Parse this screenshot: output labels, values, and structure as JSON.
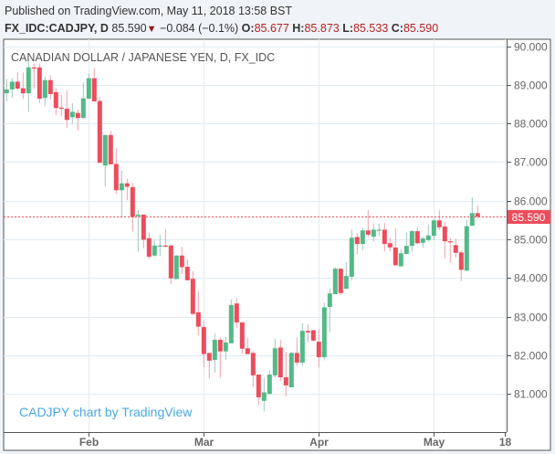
{
  "header": {
    "published": "Published on TradingView.com, May 11, 2018 13:58 BST",
    "symbol": "FX_IDC:CADJPY, D",
    "last": "85.590",
    "direction_icon": "triangle-down-icon",
    "change": "−0.084 (−0.1%)",
    "open_label": "O:",
    "open": "85.677",
    "high_label": "H:",
    "high": "85.873",
    "low_label": "L:",
    "low": "85.533",
    "close_label": "C:",
    "close": "85.590"
  },
  "colors": {
    "up": "#53b987",
    "down": "#eb4d5c",
    "up_wick": "#9fc7bd",
    "down_wick": "#eda2aa",
    "last_price": "#eb4d5c",
    "watermark": "#4aa8e0"
  },
  "chart_data": {
    "type": "candlestick",
    "title": "CANADIAN DOLLAR / JAPANESE YEN, D, FX_IDC",
    "watermark": "CADJPY chart by TradingView",
    "ylim": [
      80.2,
      90.15
    ],
    "y_ticks": [
      "90.000",
      "89.000",
      "88.000",
      "87.000",
      "86.000",
      "85.000",
      "84.000",
      "83.000",
      "82.000",
      "81.000"
    ],
    "x_ticks": [
      {
        "label": "Feb",
        "bar": 15
      },
      {
        "label": "Mar",
        "bar": 36
      },
      {
        "label": "Apr",
        "bar": 57
      },
      {
        "label": "May",
        "bar": 78
      },
      {
        "label": "18",
        "bar": 91
      }
    ],
    "grid": true,
    "last_price": 85.59,
    "last_price_label": "85.590",
    "ohlc": [
      [
        88.78,
        89.15,
        88.57,
        88.88
      ],
      [
        88.88,
        89.17,
        88.66,
        89.08
      ],
      [
        89.08,
        89.33,
        88.86,
        88.9
      ],
      [
        88.91,
        89.32,
        88.64,
        88.78
      ],
      [
        88.78,
        89.65,
        88.3,
        89.45
      ],
      [
        89.45,
        89.55,
        88.9,
        89.42
      ],
      [
        89.45,
        89.55,
        88.52,
        88.64
      ],
      [
        88.66,
        89.21,
        88.44,
        89.12
      ],
      [
        89.12,
        89.24,
        88.62,
        88.76
      ],
      [
        88.81,
        88.91,
        88.21,
        88.4
      ],
      [
        88.41,
        88.74,
        88.19,
        88.38
      ],
      [
        88.38,
        88.86,
        87.89,
        88.09
      ],
      [
        88.16,
        88.52,
        87.99,
        88.3
      ],
      [
        88.27,
        88.36,
        87.81,
        88.14
      ],
      [
        88.14,
        89.06,
        88.13,
        88.65
      ],
      [
        88.64,
        89.29,
        88.64,
        89.17
      ],
      [
        89.17,
        89.43,
        88.57,
        88.57
      ],
      [
        88.58,
        88.68,
        86.98,
        86.98
      ],
      [
        86.91,
        87.7,
        86.37,
        87.7
      ],
      [
        87.7,
        87.81,
        86.94,
        86.94
      ],
      [
        86.95,
        87.37,
        86.17,
        86.27
      ],
      [
        86.27,
        86.78,
        85.56,
        86.45
      ],
      [
        86.45,
        86.57,
        86.01,
        86.36
      ],
      [
        86.35,
        86.47,
        85.2,
        85.58
      ],
      [
        85.6,
        85.76,
        84.68,
        85.64
      ],
      [
        85.64,
        85.64,
        84.77,
        84.99
      ],
      [
        85.03,
        85.18,
        84.49,
        84.55
      ],
      [
        84.58,
        84.99,
        84.55,
        84.84
      ],
      [
        84.82,
        85.12,
        84.57,
        84.84
      ],
      [
        84.84,
        85.26,
        84.79,
        84.81
      ],
      [
        84.84,
        84.87,
        83.84,
        83.99
      ],
      [
        83.97,
        84.59,
        83.97,
        84.58
      ],
      [
        84.58,
        84.81,
        84.1,
        84.28
      ],
      [
        84.29,
        84.48,
        83.94,
        83.94
      ],
      [
        83.98,
        84.17,
        83.04,
        83.07
      ],
      [
        83.11,
        83.66,
        82.52,
        82.74
      ],
      [
        82.73,
        82.89,
        81.68,
        82.03
      ],
      [
        82.06,
        82.06,
        81.39,
        81.86
      ],
      [
        81.88,
        82.56,
        81.55,
        82.4
      ],
      [
        82.4,
        82.46,
        81.42,
        82.1
      ],
      [
        82.1,
        82.47,
        81.88,
        82.33
      ],
      [
        82.31,
        83.45,
        82.31,
        83.3
      ],
      [
        83.34,
        83.48,
        82.71,
        82.85
      ],
      [
        82.85,
        82.85,
        82.04,
        82.17
      ],
      [
        82.18,
        82.44,
        82.03,
        82.03
      ],
      [
        82.06,
        82.11,
        81.18,
        81.48
      ],
      [
        81.5,
        81.5,
        80.71,
        80.91
      ],
      [
        80.82,
        81.42,
        80.55,
        81.04
      ],
      [
        81.0,
        81.61,
        81.0,
        81.5
      ],
      [
        81.48,
        82.42,
        81.42,
        82.18
      ],
      [
        82.2,
        82.4,
        81.34,
        81.43
      ],
      [
        81.43,
        82.09,
        80.94,
        81.22
      ],
      [
        81.17,
        82.09,
        81.17,
        82.06
      ],
      [
        82.06,
        82.46,
        81.73,
        81.81
      ],
      [
        81.81,
        82.83,
        81.73,
        82.63
      ],
      [
        82.63,
        82.8,
        82.34,
        82.59
      ],
      [
        82.65,
        82.65,
        82.36,
        82.38
      ],
      [
        82.35,
        82.68,
        81.68,
        81.95
      ],
      [
        81.95,
        83.36,
        81.87,
        83.24
      ],
      [
        83.25,
        83.72,
        82.6,
        83.6
      ],
      [
        83.58,
        84.28,
        83.58,
        84.24
      ],
      [
        84.24,
        84.25,
        83.56,
        83.61
      ],
      [
        83.72,
        84.41,
        83.72,
        84.05
      ],
      [
        84.03,
        85.25,
        83.94,
        85.04
      ],
      [
        85.06,
        85.16,
        84.61,
        84.88
      ],
      [
        84.88,
        85.31,
        84.72,
        85.23
      ],
      [
        85.23,
        85.76,
        85.06,
        85.12
      ],
      [
        85.07,
        85.41,
        84.94,
        85.25
      ],
      [
        85.24,
        85.41,
        85.08,
        85.25
      ],
      [
        85.25,
        85.43,
        84.69,
        84.88
      ],
      [
        84.9,
        85.04,
        84.69,
        84.79
      ],
      [
        84.79,
        85.29,
        84.33,
        84.33
      ],
      [
        84.3,
        84.74,
        84.3,
        84.64
      ],
      [
        84.62,
        85.18,
        84.62,
        84.83
      ],
      [
        84.83,
        85.24,
        84.69,
        85.21
      ],
      [
        85.21,
        85.31,
        84.88,
        84.9
      ],
      [
        84.91,
        85.07,
        84.78,
        85.02
      ],
      [
        84.98,
        85.39,
        84.94,
        85.1
      ],
      [
        85.09,
        85.55,
        84.98,
        85.49
      ],
      [
        85.49,
        85.75,
        85.24,
        85.31
      ],
      [
        85.33,
        85.45,
        84.5,
        84.95
      ],
      [
        84.95,
        85.04,
        84.39,
        84.93
      ],
      [
        84.85,
        85.02,
        84.53,
        84.65
      ],
      [
        84.66,
        84.71,
        83.92,
        84.21
      ],
      [
        84.19,
        85.51,
        84.18,
        85.34
      ],
      [
        85.35,
        86.09,
        85.35,
        85.68
      ],
      [
        85.677,
        85.873,
        85.533,
        85.59
      ]
    ]
  }
}
